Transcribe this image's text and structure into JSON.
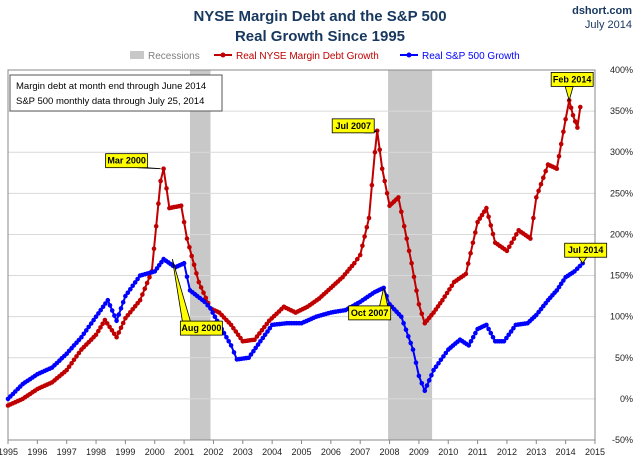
{
  "chart_data": {
    "type": "line",
    "title": "NYSE Margin Debt and the S&P 500",
    "subtitle": "Real Growth Since 1995",
    "source": "dshort.com",
    "date": "July 2014",
    "xlim": [
      1995,
      2015
    ],
    "ylim": [
      -50,
      400
    ],
    "x_ticks": [
      "1995",
      "1996",
      "1997",
      "1998",
      "1999",
      "2000",
      "2001",
      "2002",
      "2003",
      "2004",
      "2005",
      "2006",
      "2007",
      "2008",
      "2009",
      "2010",
      "2011",
      "2012",
      "2013",
      "2014",
      "2015"
    ],
    "y_ticks": [
      "-50%",
      "0%",
      "50%",
      "100%",
      "150%",
      "200%",
      "250%",
      "300%",
      "350%",
      "400%"
    ],
    "grid": true,
    "legend": {
      "placement": "top",
      "items": [
        {
          "name": "Recessions",
          "color": "#c8c8c8"
        },
        {
          "name": "Real NYSE Margin Debt Growth",
          "color": "#c00000"
        },
        {
          "name": "Real S&P 500 Growth",
          "color": "#0000ff"
        }
      ]
    },
    "notes": [
      "Margin debt at month end through June 2014",
      "S&P 500 monthly data through July 25, 2014"
    ],
    "recessions": [
      [
        2001.2,
        2001.9
      ],
      [
        2007.95,
        2009.45
      ]
    ],
    "series": [
      {
        "name": "Real NYSE Margin Debt Growth",
        "color": "#c00000",
        "points": [
          [
            1995.0,
            -8
          ],
          [
            1995.5,
            0
          ],
          [
            1996.0,
            12
          ],
          [
            1996.5,
            20
          ],
          [
            1997.0,
            35
          ],
          [
            1997.5,
            60
          ],
          [
            1998.0,
            78
          ],
          [
            1998.3,
            96
          ],
          [
            1998.7,
            75
          ],
          [
            1999.0,
            98
          ],
          [
            1999.5,
            120
          ],
          [
            1999.9,
            155
          ],
          [
            2000.2,
            265
          ],
          [
            2000.3,
            280
          ],
          [
            2000.5,
            232
          ],
          [
            2000.9,
            235
          ],
          [
            2001.1,
            195
          ],
          [
            2001.5,
            142
          ],
          [
            2001.9,
            110
          ],
          [
            2002.2,
            105
          ],
          [
            2002.6,
            90
          ],
          [
            2003.0,
            70
          ],
          [
            2003.4,
            72
          ],
          [
            2003.9,
            95
          ],
          [
            2004.4,
            112
          ],
          [
            2004.8,
            105
          ],
          [
            2005.2,
            112
          ],
          [
            2005.6,
            122
          ],
          [
            2006.0,
            135
          ],
          [
            2006.4,
            148
          ],
          [
            2006.8,
            165
          ],
          [
            2007.0,
            175
          ],
          [
            2007.3,
            220
          ],
          [
            2007.5,
            300
          ],
          [
            2007.58,
            326
          ],
          [
            2007.75,
            280
          ],
          [
            2008.0,
            235
          ],
          [
            2008.3,
            245
          ],
          [
            2008.5,
            210
          ],
          [
            2008.75,
            165
          ],
          [
            2009.0,
            115
          ],
          [
            2009.2,
            92
          ],
          [
            2009.5,
            105
          ],
          [
            2009.8,
            120
          ],
          [
            2010.2,
            142
          ],
          [
            2010.6,
            152
          ],
          [
            2011.0,
            215
          ],
          [
            2011.3,
            232
          ],
          [
            2011.6,
            190
          ],
          [
            2012.0,
            180
          ],
          [
            2012.4,
            205
          ],
          [
            2012.8,
            195
          ],
          [
            2013.0,
            245
          ],
          [
            2013.4,
            285
          ],
          [
            2013.7,
            280
          ],
          [
            2014.0,
            340
          ],
          [
            2014.12,
            363
          ],
          [
            2014.25,
            345
          ],
          [
            2014.4,
            330
          ],
          [
            2014.5,
            355
          ]
        ]
      },
      {
        "name": "Real S&P 500 Growth",
        "color": "#0000ff",
        "points": [
          [
            1995.0,
            0
          ],
          [
            1995.5,
            18
          ],
          [
            1996.0,
            30
          ],
          [
            1996.5,
            38
          ],
          [
            1997.0,
            55
          ],
          [
            1997.5,
            75
          ],
          [
            1998.0,
            100
          ],
          [
            1998.4,
            120
          ],
          [
            1998.7,
            95
          ],
          [
            1999.0,
            125
          ],
          [
            1999.5,
            150
          ],
          [
            2000.0,
            155
          ],
          [
            2000.3,
            170
          ],
          [
            2000.7,
            160
          ],
          [
            2001.0,
            165
          ],
          [
            2001.2,
            132
          ],
          [
            2001.7,
            118
          ],
          [
            2001.9,
            110
          ],
          [
            2002.2,
            90
          ],
          [
            2002.6,
            65
          ],
          [
            2002.8,
            48
          ],
          [
            2003.2,
            50
          ],
          [
            2003.6,
            70
          ],
          [
            2004.0,
            90
          ],
          [
            2004.5,
            92
          ],
          [
            2005.0,
            92
          ],
          [
            2005.5,
            100
          ],
          [
            2006.0,
            105
          ],
          [
            2006.5,
            108
          ],
          [
            2007.0,
            118
          ],
          [
            2007.5,
            130
          ],
          [
            2007.8,
            135
          ],
          [
            2008.0,
            115
          ],
          [
            2008.4,
            100
          ],
          [
            2008.8,
            60
          ],
          [
            2009.0,
            28
          ],
          [
            2009.2,
            10
          ],
          [
            2009.5,
            35
          ],
          [
            2010.0,
            60
          ],
          [
            2010.4,
            72
          ],
          [
            2010.7,
            65
          ],
          [
            2011.0,
            85
          ],
          [
            2011.3,
            90
          ],
          [
            2011.6,
            70
          ],
          [
            2011.9,
            70
          ],
          [
            2012.3,
            90
          ],
          [
            2012.7,
            92
          ],
          [
            2013.0,
            102
          ],
          [
            2013.4,
            120
          ],
          [
            2013.7,
            132
          ],
          [
            2014.0,
            148
          ],
          [
            2014.3,
            155
          ],
          [
            2014.58,
            165
          ]
        ]
      }
    ],
    "annotations": [
      {
        "text": "Mar 2000",
        "x": 2000.2,
        "y": 280,
        "series": "Real NYSE Margin Debt Growth"
      },
      {
        "text": "Aug 2000",
        "x": 2000.6,
        "y": 170,
        "series": "Real S&P 500 Growth"
      },
      {
        "text": "Jul 2007",
        "x": 2007.58,
        "y": 326,
        "series": "Real NYSE Margin Debt Growth"
      },
      {
        "text": "Oct 2007",
        "x": 2007.8,
        "y": 135,
        "series": "Real S&P 500 Growth"
      },
      {
        "text": "Feb 2014",
        "x": 2014.12,
        "y": 363,
        "series": "Real NYSE Margin Debt Growth"
      },
      {
        "text": "Jul 2014",
        "x": 2014.58,
        "y": 165,
        "series": "Real S&P 500 Growth"
      }
    ]
  }
}
